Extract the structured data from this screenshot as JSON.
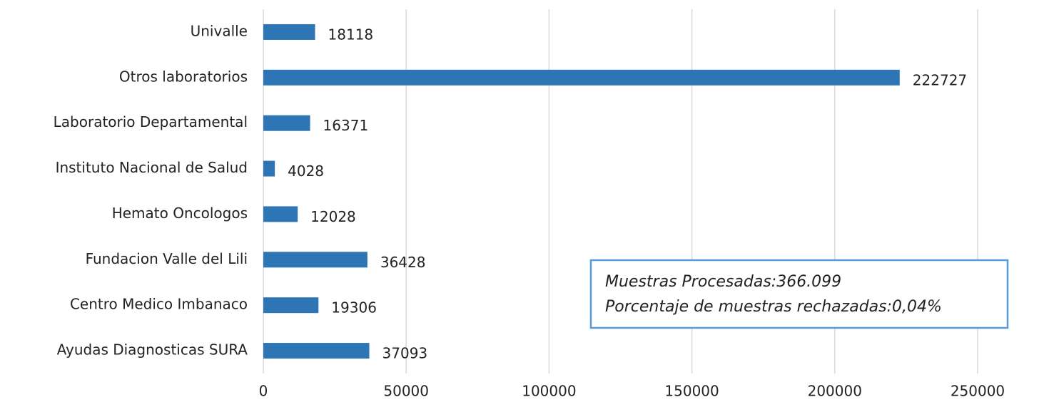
{
  "chart_data": {
    "type": "bar",
    "orientation": "horizontal",
    "categories": [
      "Univalle",
      "Otros laboratorios",
      "Laboratorio Departamental",
      "Instituto Nacional de Salud",
      "Hemato Oncologos",
      "Fundacion Valle del Lili",
      "Centro Medico Imbanaco",
      "Ayudas Diagnosticas SURA"
    ],
    "values": [
      18118,
      222727,
      16371,
      4028,
      12028,
      36428,
      19306,
      37093
    ],
    "color": "#2e75b6",
    "xlim": [
      0,
      250000
    ],
    "xticks": [
      0,
      50000,
      100000,
      150000,
      200000,
      250000
    ],
    "grid": true,
    "annotations": [
      "Muestras Procesadas:366.099",
      "Porcentaje de muestras rechazadas:0,04%"
    ]
  }
}
